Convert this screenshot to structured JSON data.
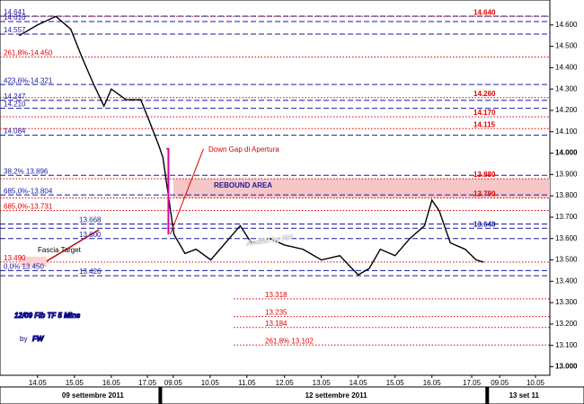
{
  "chart_data": {
    "type": "line",
    "title": "12/09 Fib TF 5 Mins",
    "byline": "by",
    "author": "FW",
    "watermark": "Analisi by FW",
    "x": [
      -0.5,
      0,
      0.5,
      0.9,
      1.2,
      1.5,
      1.8,
      2.0,
      2.4,
      2.8,
      3.1,
      3.3,
      3.4,
      3.7,
      4.0,
      4.3,
      4.7,
      5.2,
      5.5,
      5.8,
      6.3,
      6.7,
      7.2,
      7.7,
      8.2,
      8.7,
      9.0,
      9.3,
      9.7,
      10.1,
      10.5,
      10.7,
      10.9,
      11.2,
      11.6,
      11.9,
      12.1
    ],
    "values": [
      14.55,
      14.6,
      14.64,
      14.58,
      14.45,
      14.33,
      14.22,
      14.3,
      14.25,
      14.25,
      14.12,
      14.03,
      13.98,
      13.62,
      13.53,
      13.55,
      13.5,
      13.6,
      13.66,
      13.58,
      13.6,
      13.57,
      13.55,
      13.5,
      13.52,
      13.43,
      13.46,
      13.55,
      13.52,
      13.6,
      13.66,
      13.78,
      13.73,
      13.58,
      13.55,
      13.5,
      13.49
    ],
    "color": "#000000",
    "xlim": [
      -1.02,
      13.9
    ],
    "xticks": [
      {
        "value": 0,
        "label": "14.05"
      },
      {
        "value": 1,
        "label": "15.05"
      },
      {
        "value": 2,
        "label": "16.05"
      },
      {
        "value": 2.98,
        "label": "17.05"
      },
      {
        "value": 3.68,
        "label": "09.05"
      },
      {
        "value": 4.68,
        "label": "10.05"
      },
      {
        "value": 5.68,
        "label": "11.05"
      },
      {
        "value": 6.7,
        "label": "12.05"
      },
      {
        "value": 7.7,
        "label": "13.05"
      },
      {
        "value": 8.7,
        "label": "14.05"
      },
      {
        "value": 9.7,
        "label": "15.05"
      },
      {
        "value": 10.7,
        "label": "16.05"
      },
      {
        "value": 11.78,
        "label": "17.05"
      },
      {
        "value": 12.54,
        "label": "09.05"
      },
      {
        "value": 13.51,
        "label": "10.05"
      }
    ],
    "ylim": [
      12.96,
      14.7
    ],
    "yticks": [
      {
        "value": 13.0,
        "label": "13.000"
      },
      {
        "value": 13.1,
        "label": "13.100"
      },
      {
        "value": 13.2,
        "label": "13.200"
      },
      {
        "value": 13.3,
        "label": "13.300"
      },
      {
        "value": 13.4,
        "label": "13.400"
      },
      {
        "value": 13.5,
        "label": "13.500"
      },
      {
        "value": 13.6,
        "label": "13.600"
      },
      {
        "value": 13.7,
        "label": "13.700"
      },
      {
        "value": 13.8,
        "label": "13.800"
      },
      {
        "value": 13.9,
        "label": "13.900"
      },
      {
        "value": 14.0,
        "label": "14.000"
      },
      {
        "value": 14.1,
        "label": "14.100"
      },
      {
        "value": 14.2,
        "label": "14.200"
      },
      {
        "value": 14.3,
        "label": "14.300"
      },
      {
        "value": 14.4,
        "label": "14.400"
      },
      {
        "value": 14.5,
        "label": "14.500"
      },
      {
        "value": 14.6,
        "label": "14.600"
      }
    ],
    "dates": [
      {
        "value": 1.5,
        "label": "09 settembre 2011"
      },
      {
        "value": 8.1,
        "label": "12 settembre 2011"
      },
      {
        "value": 13.2,
        "label": "13 set 11"
      }
    ],
    "rebound_area": {
      "label": "REBOUND AREA",
      "range": [
        13.79,
        13.88
      ],
      "color": "#f7c6c6"
    },
    "gap": {
      "label": "Down Gap di Apertura",
      "color": "#e000a0",
      "range": [
        13.62,
        14.02
      ]
    },
    "target": {
      "label": "Fascia Target",
      "color": "#c00000"
    },
    "levels": [
      {
        "value": 14.64,
        "label": "14.640",
        "side": "right",
        "color": "#e00000"
      },
      {
        "value": 14.26,
        "label": "14.260",
        "side": "right",
        "color": "#e00000"
      },
      {
        "value": 14.17,
        "label": "14.170",
        "side": "right",
        "color": "#e00000"
      },
      {
        "value": 14.115,
        "label": "14.115",
        "side": "right",
        "color": "#e00000"
      },
      {
        "value": 13.88,
        "label": "13.880",
        "side": "right",
        "color": "#e00000"
      },
      {
        "value": 13.79,
        "label": "13.790",
        "side": "right",
        "color": "#e00000"
      },
      {
        "value": 13.648,
        "label": "13.648",
        "side": "right",
        "color": "#1a1aa0"
      },
      {
        "value": 13.318,
        "label": "13.318",
        "side": "center",
        "color": "#e00000"
      },
      {
        "value": 13.235,
        "label": "13.235",
        "side": "center",
        "color": "#e00000"
      },
      {
        "value": 13.184,
        "label": "13.184",
        "side": "center",
        "color": "#e00000"
      },
      {
        "value": 13.102,
        "label": "261,8% 13.102",
        "side": "center",
        "color": "#e00000"
      },
      {
        "value": 14.641,
        "label": "14.641",
        "side": "left",
        "color": "#1a1aa0"
      },
      {
        "value": 14.616,
        "label": "14.616",
        "side": "left",
        "color": "#1a1aa0"
      },
      {
        "value": 14.557,
        "label": "14.557",
        "side": "left",
        "color": "#1a1aa0"
      },
      {
        "value": 14.45,
        "label": "261,8%-14.450",
        "side": "left",
        "color": "#e00000"
      },
      {
        "value": 14.321,
        "label": "423,6%-14.321",
        "side": "left",
        "color": "#1a1aa0"
      },
      {
        "value": 14.247,
        "label": "14.247",
        "side": "left",
        "color": "#1a1aa0"
      },
      {
        "value": 14.21,
        "label": "14.210",
        "side": "left",
        "color": "#1a1aa0"
      },
      {
        "value": 14.084,
        "label": "14.084",
        "side": "left",
        "color": "#1a1aa0"
      },
      {
        "value": 13.896,
        "label": "38,2%  13.896",
        "side": "left",
        "color": "#1a1aa0"
      },
      {
        "value": 13.804,
        "label": "685,0%-13.804",
        "side": "left",
        "color": "#1a1aa0"
      },
      {
        "value": 13.731,
        "label": "685,0%-13.731",
        "side": "left",
        "color": "#e00000"
      },
      {
        "value": 13.668,
        "label": "13.668",
        "side": "mid",
        "color": "#1a1aa0"
      },
      {
        "value": 13.6,
        "label": "13.600",
        "side": "mid",
        "color": "#1a1aa0"
      },
      {
        "value": 13.49,
        "label": "13.490",
        "side": "left",
        "color": "#e00000"
      },
      {
        "value": 13.45,
        "label": "0,0%  13.450",
        "side": "left",
        "color": "#1a1aa0"
      },
      {
        "value": 13.426,
        "label": "13.426",
        "side": "mid",
        "color": "#1a1aa0"
      }
    ]
  }
}
